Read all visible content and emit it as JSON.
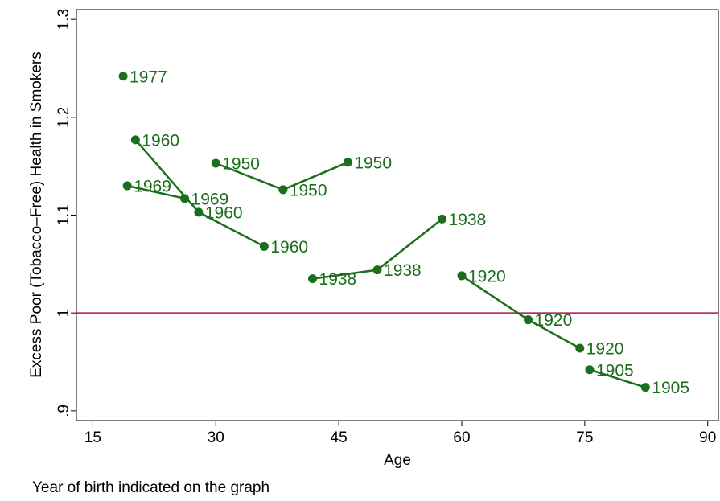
{
  "chart_data": {
    "type": "connected-scatter",
    "ylabel": "Excess Poor (Tobacco–Free) Health in Smokers",
    "xlabel": "Age",
    "note": "Year of birth indicated on the graph",
    "xlim": [
      13,
      91.3
    ],
    "xticks": [
      15,
      30,
      45,
      60,
      75,
      90
    ],
    "ylim": [
      0.89,
      1.31
    ],
    "yticks": [
      {
        "value": 0.9,
        "label": ".9"
      },
      1,
      1.1,
      1.2,
      1.3
    ],
    "hline": 1,
    "hline_color": "#b0124a",
    "series": [
      {
        "name": "1977",
        "color": "#1b6e1b",
        "x": [
          18.7
        ],
        "values": [
          1.242
        ]
      },
      {
        "name": "1969",
        "color": "#1b6e1b",
        "x": [
          19.2,
          26.2
        ],
        "values": [
          1.13,
          1.117
        ]
      },
      {
        "name": "1960",
        "color": "#1b6e1b",
        "x": [
          20.2,
          27.9,
          35.9
        ],
        "values": [
          1.177,
          1.103,
          1.068
        ]
      },
      {
        "name": "1950",
        "color": "#1b6e1b",
        "x": [
          30.0,
          38.2,
          46.1
        ],
        "values": [
          1.153,
          1.126,
          1.154
        ]
      },
      {
        "name": "1938",
        "color": "#1b6e1b",
        "x": [
          41.8,
          49.7,
          57.6
        ],
        "values": [
          1.035,
          1.044,
          1.096
        ]
      },
      {
        "name": "1920",
        "color": "#1b6e1b",
        "x": [
          60.0,
          68.1,
          74.4
        ],
        "values": [
          1.038,
          0.993,
          0.964
        ]
      },
      {
        "name": "1905",
        "color": "#1b6e1b",
        "x": [
          75.6,
          82.4
        ],
        "values": [
          0.942,
          0.924
        ]
      }
    ]
  }
}
